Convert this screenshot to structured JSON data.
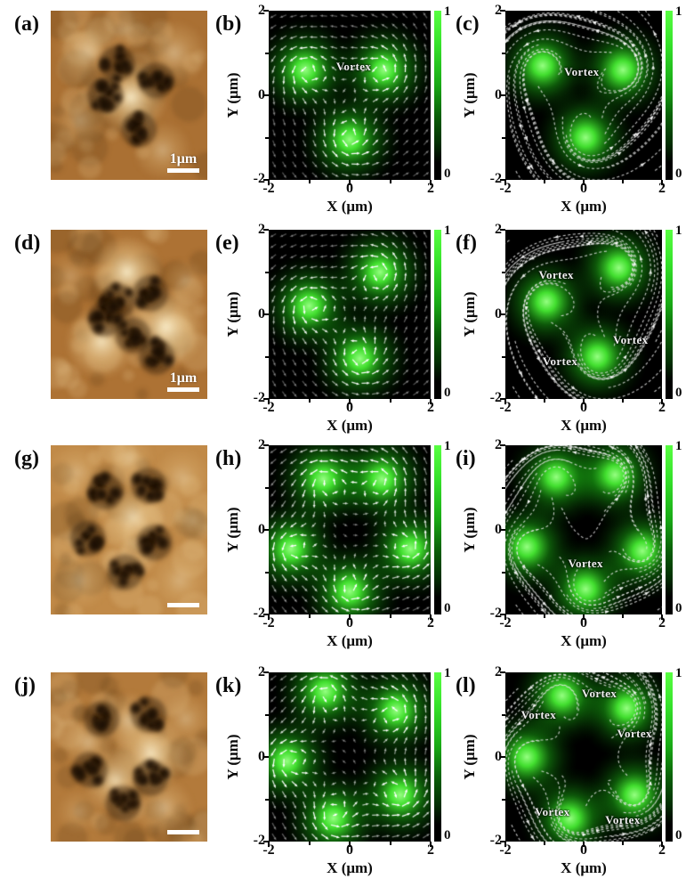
{
  "axes": {
    "xlabel": "X (μm)",
    "ylabel": "Y (μm)",
    "xticks": [
      "-2",
      "0",
      "2"
    ],
    "yticks": [
      "2",
      "0",
      "-2"
    ],
    "xrange": [
      -2,
      2
    ],
    "yrange": [
      -2,
      2
    ]
  },
  "colorbar": {
    "top_label": "1",
    "bottom_label": "0"
  },
  "colors": {
    "plot_background": "#000000",
    "blob_core": "#96ff82",
    "blob_main": "#46eb32",
    "blob_halo": "#148c0f",
    "arrow": "#ffffff",
    "vortex_text": "#efefef",
    "panel_text": "#0a0a0a",
    "scalebar": "#ffffff",
    "afm_dark": "#1c0f04",
    "afm_bright": "#fcf0cd"
  },
  "rows": [
    {
      "afm": {
        "label": "(a)",
        "scalebar_text": "1μm",
        "base_color": "#aa7033",
        "dark_clusters": [
          {
            "x": -0.3,
            "y": 0.75
          },
          {
            "x": 0.7,
            "y": 0.35
          },
          {
            "x": 0.25,
            "y": -0.8
          },
          {
            "x": -0.6,
            "y": 0.0
          }
        ],
        "bright_spots": [
          {
            "x": 0.05,
            "y": -0.05,
            "r": 0.5,
            "s": 1
          },
          {
            "x": -1.05,
            "y": 1.05,
            "r": 0.45,
            "s": 0.5
          },
          {
            "x": 1.15,
            "y": 1.0,
            "r": 0.45,
            "s": 0.5
          },
          {
            "x": -1.25,
            "y": -0.6,
            "r": 0.4,
            "s": 0.4
          },
          {
            "x": 0.85,
            "y": -1.3,
            "r": 0.4,
            "s": 0.45
          },
          {
            "x": -0.1,
            "y": 1.55,
            "r": 0.35,
            "s": 0.3
          }
        ]
      },
      "vector": {
        "label": "(b)",
        "type": "quiver",
        "blobs": [
          {
            "x": -1.1,
            "y": 0.6
          },
          {
            "x": 0.85,
            "y": 0.6
          },
          {
            "x": 0.0,
            "y": -1.05
          }
        ],
        "vortex_labels": [
          {
            "text": "Vortex",
            "x": 0.1,
            "y": 0.68
          }
        ]
      },
      "stream": {
        "label": "(c)",
        "type": "streamline",
        "blobs": [
          {
            "x": -1.05,
            "y": 0.7
          },
          {
            "x": 1.0,
            "y": 0.6
          },
          {
            "x": 0.05,
            "y": -1.0
          }
        ],
        "vortex_labels": [
          {
            "text": "Vortex",
            "x": -0.05,
            "y": 0.55
          }
        ]
      }
    },
    {
      "afm": {
        "label": "(d)",
        "scalebar_text": "1μm",
        "base_color": "#ad7234",
        "dark_clusters": [
          {
            "x": -0.3,
            "y": 0.3
          },
          {
            "x": 0.55,
            "y": 0.5
          },
          {
            "x": 0.1,
            "y": -0.5
          },
          {
            "x": 0.7,
            "y": -1.0
          },
          {
            "x": -0.6,
            "y": -0.1
          }
        ],
        "bright_spots": [
          {
            "x": -0.05,
            "y": 1.0,
            "r": 0.5,
            "s": 1
          },
          {
            "x": 0.95,
            "y": -0.3,
            "r": 0.55,
            "s": 1
          },
          {
            "x": -0.7,
            "y": -0.65,
            "r": 0.5,
            "s": 0.9
          },
          {
            "x": -1.5,
            "y": 0.9,
            "r": 0.35,
            "s": 0.3
          },
          {
            "x": 1.45,
            "y": 0.8,
            "r": 0.3,
            "s": 0.3
          }
        ]
      },
      "vector": {
        "label": "(e)",
        "type": "quiver",
        "blobs": [
          {
            "x": -1.0,
            "y": 0.2
          },
          {
            "x": 0.75,
            "y": 1.0
          },
          {
            "x": 0.25,
            "y": -1.05
          }
        ],
        "vortex_labels": []
      },
      "stream": {
        "label": "(f)",
        "type": "streamline",
        "blobs": [
          {
            "x": -0.95,
            "y": 0.3
          },
          {
            "x": 0.9,
            "y": 1.1
          },
          {
            "x": 0.35,
            "y": -1.0
          }
        ],
        "vortex_labels": [
          {
            "text": "Vortex",
            "x": -0.7,
            "y": 0.92
          },
          {
            "text": "Vortex",
            "x": 1.2,
            "y": -0.6
          },
          {
            "text": "Vortex",
            "x": -0.6,
            "y": -1.12
          }
        ]
      }
    },
    {
      "afm": {
        "label": "(g)",
        "scalebar_text": "",
        "base_color": "#c18a48",
        "dark_clusters": [
          {
            "x": -0.6,
            "y": 0.9
          },
          {
            "x": 0.5,
            "y": 1.05
          },
          {
            "x": -1.05,
            "y": -0.2
          },
          {
            "x": 0.65,
            "y": -0.3
          },
          {
            "x": -0.1,
            "y": -1.0
          }
        ],
        "bright_spots": [
          {
            "x": 0.1,
            "y": 0.3,
            "r": 0.45,
            "s": 0.8
          },
          {
            "x": -1.35,
            "y": 1.35,
            "r": 0.4,
            "s": 0.4
          },
          {
            "x": 1.35,
            "y": 1.25,
            "r": 0.4,
            "s": 0.4
          },
          {
            "x": 1.3,
            "y": -1.2,
            "r": 0.4,
            "s": 0.4
          },
          {
            "x": -1.25,
            "y": -1.2,
            "r": 0.4,
            "s": 0.4
          },
          {
            "x": 0.0,
            "y": 1.7,
            "r": 0.35,
            "s": 0.35
          },
          {
            "x": 1.6,
            "y": 0.2,
            "r": 0.3,
            "s": 0.35
          }
        ]
      },
      "vector": {
        "label": "(h)",
        "type": "quiver",
        "blobs": [
          {
            "x": -0.65,
            "y": 1.2
          },
          {
            "x": 0.8,
            "y": 1.2
          },
          {
            "x": -1.45,
            "y": -0.45
          },
          {
            "x": 1.5,
            "y": -0.45
          },
          {
            "x": 0.0,
            "y": -1.45
          }
        ],
        "vortex_labels": []
      },
      "stream": {
        "label": "(i)",
        "type": "streamline",
        "blobs": [
          {
            "x": -0.7,
            "y": 1.25
          },
          {
            "x": 0.8,
            "y": 1.3
          },
          {
            "x": -1.45,
            "y": -0.4
          },
          {
            "x": 1.5,
            "y": -0.5
          },
          {
            "x": 0.05,
            "y": -1.4
          }
        ],
        "vortex_labels": [
          {
            "text": "Vortex",
            "x": 0.05,
            "y": -0.8
          }
        ]
      }
    },
    {
      "afm": {
        "label": "(j)",
        "scalebar_text": "",
        "base_color": "#b37a3b",
        "dark_clusters": [
          {
            "x": -0.7,
            "y": 0.9
          },
          {
            "x": 0.5,
            "y": 1.0
          },
          {
            "x": -1.0,
            "y": -0.3
          },
          {
            "x": 0.55,
            "y": -0.5
          },
          {
            "x": -0.15,
            "y": -1.1
          }
        ],
        "bright_spots": [
          {
            "x": 0.55,
            "y": 0.1,
            "r": 0.5,
            "s": 0.9
          },
          {
            "x": -0.35,
            "y": -0.55,
            "r": 0.45,
            "s": 0.8
          },
          {
            "x": 0.0,
            "y": 0.85,
            "r": 0.4,
            "s": 0.6
          },
          {
            "x": -1.05,
            "y": 0.35,
            "r": 0.35,
            "s": 0.5
          },
          {
            "x": 0.9,
            "y": -1.2,
            "r": 0.4,
            "s": 0.5
          },
          {
            "x": 1.45,
            "y": 0.9,
            "r": 0.35,
            "s": 0.4
          },
          {
            "x": -1.3,
            "y": -1.3,
            "r": 0.3,
            "s": 0.3
          }
        ]
      },
      "vector": {
        "label": "(k)",
        "type": "quiver",
        "blobs": [
          {
            "x": -0.6,
            "y": 1.55
          },
          {
            "x": 1.15,
            "y": 1.1
          },
          {
            "x": -1.55,
            "y": -0.1
          },
          {
            "x": -0.4,
            "y": -1.45
          },
          {
            "x": 1.25,
            "y": -0.9
          }
        ],
        "vortex_labels": []
      },
      "stream": {
        "label": "(l)",
        "type": "streamline",
        "blobs": [
          {
            "x": -0.55,
            "y": 1.45
          },
          {
            "x": 1.1,
            "y": 1.15
          },
          {
            "x": -1.45,
            "y": 0.0
          },
          {
            "x": -0.35,
            "y": -1.45
          },
          {
            "x": 1.3,
            "y": -0.9
          }
        ],
        "vortex_labels": [
          {
            "text": "Vortex",
            "x": 0.4,
            "y": 1.5
          },
          {
            "text": "Vortex",
            "x": -1.15,
            "y": 1.0
          },
          {
            "text": "Vortex",
            "x": 1.3,
            "y": 0.55
          },
          {
            "text": "Vortex",
            "x": -0.8,
            "y": -1.3
          },
          {
            "text": "Vortex",
            "x": 1.0,
            "y": -1.5
          }
        ]
      }
    }
  ]
}
